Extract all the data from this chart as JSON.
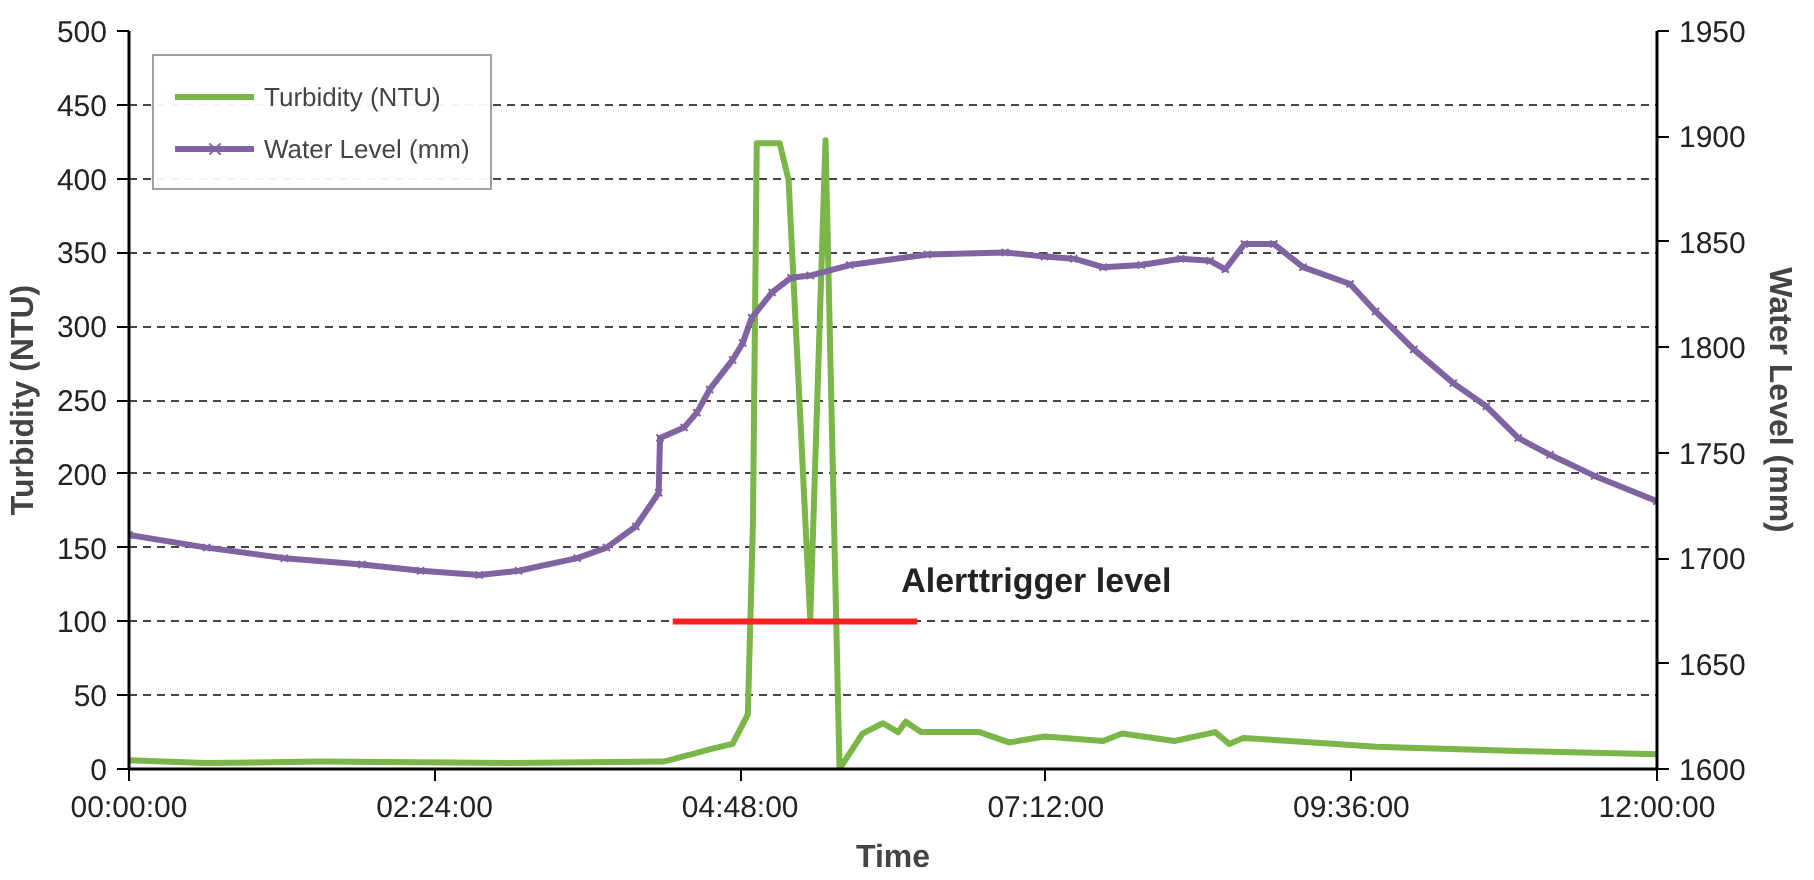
{
  "chart_data": {
    "type": "line",
    "xlabel": "Time",
    "ylabel": "Turbidity (NTU)",
    "y2label": "Water Level (mm)",
    "xlim": [
      0,
      12
    ],
    "xticks": [
      {
        "value": 0,
        "label": "00:00:00"
      },
      {
        "value": 2.4,
        "label": "02:24:00"
      },
      {
        "value": 4.8,
        "label": "04:48:00"
      },
      {
        "value": 7.2,
        "label": "07:12:00"
      },
      {
        "value": 9.6,
        "label": "09:36:00"
      },
      {
        "value": 12,
        "label": "12:00:00"
      }
    ],
    "ylim": [
      0,
      500
    ],
    "yticks": [
      0,
      50,
      100,
      150,
      200,
      250,
      300,
      350,
      400,
      450,
      500
    ],
    "y2lim": [
      1600,
      1950
    ],
    "y2ticks": [
      1600,
      1650,
      1700,
      1750,
      1800,
      1850,
      1900,
      1950
    ],
    "grid": "y",
    "legend": "top left",
    "series": [
      {
        "name": "Turbidity (NTU)",
        "color": "#7ab648",
        "marker": "none",
        "x": [
          0,
          0.6,
          1.5,
          3.0,
          4.2,
          4.59,
          4.74,
          4.86,
          4.9,
          4.93,
          5.11,
          5.18,
          5.35,
          5.47,
          5.58,
          5.76,
          5.92,
          6.04,
          6.1,
          6.22,
          6.68,
          6.91,
          7.19,
          7.65,
          7.8,
          8.21,
          8.53,
          8.64,
          8.75,
          9.48,
          9.79,
          11.0,
          12
        ],
        "values": [
          6,
          4,
          5,
          4,
          5,
          14,
          17,
          37,
          167,
          424,
          424,
          399,
          101,
          426,
          0,
          24,
          31,
          25,
          32,
          25,
          25,
          18,
          22,
          19,
          24,
          19,
          25,
          17,
          21,
          17,
          15,
          12,
          10
        ]
      },
      {
        "name": "Water Level (mm)",
        "color": "#8064a2",
        "marker": "cross",
        "axis": "y2",
        "x": [
          0,
          0.61,
          1.22,
          1.83,
          2.29,
          2.75,
          3.06,
          3.52,
          3.75,
          3.98,
          4.16,
          4.17,
          4.36,
          4.46,
          4.56,
          4.74,
          4.82,
          4.89,
          5.05,
          5.2,
          5.35,
          5.66,
          6.27,
          6.88,
          7.19,
          7.42,
          7.65,
          7.95,
          8.26,
          8.49,
          8.61,
          8.76,
          8.99,
          9.22,
          9.59,
          9.79,
          10.09,
          10.4,
          10.66,
          10.91,
          11.16,
          11.51,
          12
        ],
        "values": [
          1711,
          1705,
          1700,
          1697,
          1694,
          1692,
          1694,
          1700,
          1705,
          1715,
          1731,
          1757,
          1762,
          1769,
          1780,
          1794,
          1802,
          1814,
          1826,
          1833,
          1834,
          1839,
          1844,
          1845,
          1843,
          1842,
          1838,
          1839,
          1842,
          1841,
          1837,
          1849,
          1849,
          1838,
          1830,
          1817,
          1799,
          1783,
          1772,
          1757,
          1749,
          1739,
          1727
        ]
      },
      {
        "color": "#ff2020",
        "marker": "none",
        "x": [
          4.27,
          6.19
        ],
        "values": [
          100,
          100
        ]
      }
    ],
    "annotations": [
      "Alerttrigger level"
    ]
  }
}
